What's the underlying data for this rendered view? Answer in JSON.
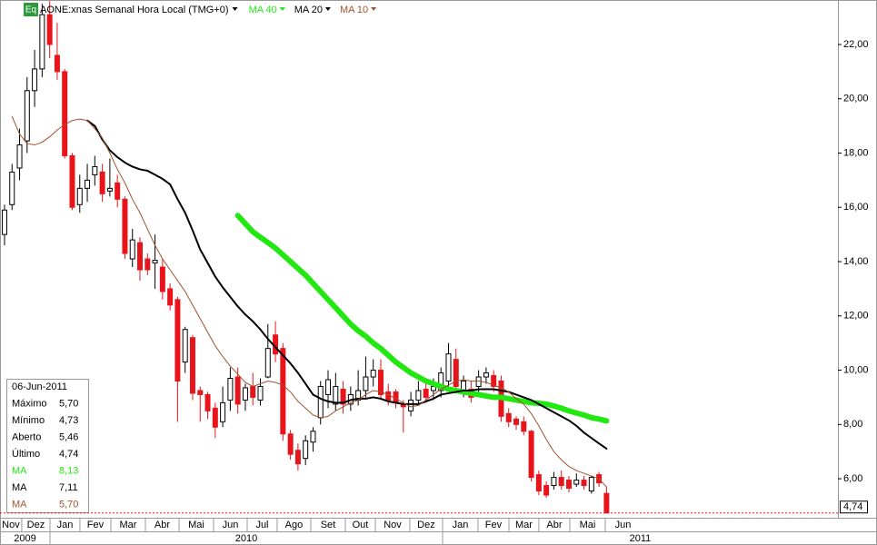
{
  "chart_data": {
    "type": "candlestick",
    "badge": "Eq",
    "title": "AONE:xnas Semanal Hora Local (TMG+0)",
    "xlim": [
      -0.6,
      110.75
    ],
    "ylim": [
      4.63,
      23.64
    ],
    "yticks": [
      {
        "value": 6,
        "label": "6,00"
      },
      {
        "value": 8,
        "label": "8,00"
      },
      {
        "value": 10,
        "label": "10,00"
      },
      {
        "value": 12,
        "label": "12,00"
      },
      {
        "value": 14,
        "label": "14,00"
      },
      {
        "value": 16,
        "label": "16,00"
      },
      {
        "value": 18,
        "label": "18,00"
      },
      {
        "value": 20,
        "label": "20,00"
      },
      {
        "value": 22,
        "label": "22,00"
      }
    ],
    "xticks": [
      {
        "value": -0.6,
        "label": "Nov"
      },
      {
        "value": 2.29,
        "label": "Dez"
      },
      {
        "value": 6.04,
        "label": "Jan"
      },
      {
        "value": 10.02,
        "label": "Fev"
      },
      {
        "value": 14.13,
        "label": "Mar"
      },
      {
        "value": 18.72,
        "label": "Abr"
      },
      {
        "value": 23.19,
        "label": "Mai"
      },
      {
        "value": 27.78,
        "label": "Jun"
      },
      {
        "value": 32.25,
        "label": "Jul"
      },
      {
        "value": 36.23,
        "label": "Ago"
      },
      {
        "value": 40.7,
        "label": "Set"
      },
      {
        "value": 45.29,
        "label": "Out"
      },
      {
        "value": 49.28,
        "label": "Nov"
      },
      {
        "value": 53.86,
        "label": "Dez"
      },
      {
        "value": 58.21,
        "label": "Jan"
      },
      {
        "value": 62.92,
        "label": "Fev"
      },
      {
        "value": 67.03,
        "label": "Mar"
      },
      {
        "value": 71.01,
        "label": "Abr"
      },
      {
        "value": 75.12,
        "label": "Mai"
      },
      {
        "value": 79.83,
        "label": "Jun"
      }
    ],
    "year_ticks": [
      {
        "value": -0.6,
        "label": "2009"
      },
      {
        "value": 6.04,
        "label": "2010"
      },
      {
        "value": 58.21,
        "label": "2011"
      }
    ],
    "candles": {
      "up_color": "#ffffff",
      "down_color": "#e8141c",
      "open": [
        15.0,
        16.1,
        17.45,
        18.45,
        20.3,
        21.1,
        23.1,
        21.6,
        21.0,
        17.9,
        16.1,
        16.7,
        17.2,
        17.3,
        16.6,
        16.9,
        16.3,
        14.1,
        14.7,
        14.1,
        13.95,
        13.8,
        13.0,
        12.6,
        10.3,
        11.2,
        9.25,
        9.1,
        8.6,
        8.1,
        8.9,
        9.75,
        8.9,
        9.4,
        8.9,
        9.75,
        11.3,
        10.8,
        7.65,
        7.05,
        6.75,
        7.35,
        8.25,
        9.1,
        8.75,
        9.3,
        8.75,
        8.9,
        9.25,
        9.75,
        10.0,
        9.2,
        9.2,
        8.75,
        8.5,
        8.9,
        9.3,
        9.25,
        9.25,
        9.6,
        10.4,
        9.25,
        9.3,
        9.4,
        9.75,
        9.8,
        9.6,
        8.4,
        8.2,
        8.1,
        7.75,
        6.15,
        5.75,
        5.75,
        6.05,
        5.95,
        5.8,
        5.95,
        5.55,
        6.15,
        5.46
      ],
      "high": [
        16.1,
        17.6,
        18.9,
        20.8,
        21.8,
        23.5,
        23.6,
        22.8,
        21.1,
        18.0,
        17.2,
        17.6,
        17.9,
        17.6,
        17.8,
        17.2,
        16.4,
        15.2,
        14.9,
        14.3,
        15.0,
        14.1,
        13.2,
        12.7,
        11.6,
        11.3,
        9.4,
        9.2,
        8.8,
        9.4,
        10.1,
        10.1,
        9.5,
        9.9,
        9.7,
        11.7,
        11.8,
        11.0,
        7.8,
        7.3,
        7.6,
        7.9,
        9.6,
        10.0,
        9.9,
        9.6,
        9.4,
        10.0,
        10.5,
        10.4,
        10.4,
        9.5,
        9.3,
        8.9,
        9.2,
        9.6,
        9.5,
        9.7,
        10.1,
        11.0,
        10.8,
        9.8,
        9.6,
        10.0,
        10.1,
        10.0,
        9.8,
        8.6,
        8.3,
        8.3,
        7.8,
        6.3,
        5.9,
        6.25,
        6.3,
        6.1,
        6.2,
        6.1,
        6.1,
        6.25,
        5.7
      ],
      "low": [
        14.6,
        15.9,
        17.0,
        18.0,
        19.7,
        20.8,
        21.5,
        20.7,
        17.8,
        15.9,
        15.8,
        16.2,
        16.8,
        16.2,
        16.4,
        16.0,
        14.1,
        13.8,
        13.3,
        13.5,
        13.0,
        12.6,
        12.2,
        8.1,
        9.9,
        8.9,
        8.1,
        8.2,
        7.5,
        7.9,
        8.5,
        8.4,
        8.5,
        8.7,
        8.7,
        9.7,
        10.3,
        7.4,
        6.7,
        6.3,
        6.5,
        7.0,
        8.0,
        8.6,
        8.5,
        8.4,
        8.5,
        8.7,
        9.0,
        9.4,
        8.9,
        8.7,
        8.6,
        7.7,
        8.3,
        8.7,
        8.8,
        8.9,
        9.0,
        9.4,
        9.2,
        9.0,
        8.8,
        9.1,
        9.5,
        9.2,
        8.1,
        7.9,
        7.8,
        7.6,
        5.9,
        5.4,
        5.3,
        5.6,
        5.6,
        5.5,
        5.7,
        5.6,
        5.45,
        5.7,
        4.73
      ],
      "close": [
        15.9,
        17.3,
        18.3,
        20.3,
        21.1,
        23.1,
        22.0,
        21.0,
        17.9,
        16.0,
        16.7,
        17.0,
        17.5,
        16.5,
        16.7,
        16.3,
        14.3,
        14.8,
        13.7,
        13.7,
        14.05,
        12.9,
        12.4,
        9.6,
        11.5,
        9.15,
        9.1,
        8.5,
        7.9,
        8.8,
        9.7,
        8.75,
        9.35,
        9.0,
        9.4,
        10.8,
        10.6,
        7.65,
        6.9,
        6.55,
        7.4,
        7.75,
        9.4,
        9.65,
        9.4,
        8.75,
        9.1,
        9.25,
        9.75,
        10.0,
        9.1,
        8.9,
        8.8,
        8.65,
        8.9,
        9.25,
        9.0,
        9.4,
        9.9,
        10.6,
        9.4,
        9.6,
        9.0,
        9.75,
        9.9,
        9.4,
        8.3,
        8.1,
        8.0,
        7.75,
        6.05,
        5.55,
        5.4,
        6.05,
        5.75,
        5.65,
        5.95,
        5.75,
        6.05,
        5.85,
        4.74
      ]
    },
    "series": [
      {
        "name": "MA 40",
        "color": "#22e812",
        "width": 6,
        "values": [
          null,
          null,
          null,
          null,
          null,
          null,
          null,
          null,
          null,
          null,
          null,
          null,
          null,
          null,
          null,
          null,
          null,
          null,
          null,
          null,
          null,
          null,
          null,
          null,
          null,
          null,
          null,
          null,
          null,
          null,
          null,
          15.7,
          15.4,
          15.1,
          14.9,
          14.7,
          14.5,
          14.25,
          14.0,
          13.75,
          13.5,
          13.2,
          12.9,
          12.6,
          12.3,
          12.0,
          11.7,
          11.45,
          11.25,
          11.0,
          10.8,
          10.55,
          10.3,
          10.1,
          9.9,
          9.75,
          9.6,
          9.5,
          9.4,
          9.3,
          9.25,
          9.2,
          9.15,
          9.1,
          9.05,
          9.0,
          9.0,
          8.95,
          8.9,
          8.85,
          8.8,
          8.78,
          8.75,
          8.68,
          8.6,
          8.5,
          8.42,
          8.35,
          8.25,
          8.2,
          8.13
        ]
      },
      {
        "name": "MA 20",
        "color": "#000000",
        "width": 2,
        "values": [
          null,
          null,
          null,
          null,
          null,
          null,
          null,
          null,
          null,
          null,
          null,
          19.2,
          19.0,
          18.5,
          18.1,
          17.85,
          17.65,
          17.5,
          17.4,
          17.35,
          17.2,
          17.05,
          16.85,
          16.3,
          15.8,
          15.15,
          14.45,
          13.95,
          13.45,
          13.05,
          12.7,
          12.35,
          12.05,
          11.8,
          11.5,
          11.15,
          10.85,
          10.55,
          10.25,
          9.9,
          9.5,
          9.1,
          8.95,
          8.85,
          8.8,
          8.8,
          8.9,
          8.95,
          8.95,
          9.0,
          8.95,
          8.85,
          8.8,
          8.75,
          8.75,
          8.75,
          8.85,
          8.95,
          9.1,
          9.15,
          9.2,
          9.25,
          9.25,
          9.3,
          9.3,
          9.3,
          9.25,
          9.2,
          9.1,
          9.0,
          8.9,
          8.75,
          8.6,
          8.45,
          8.3,
          8.15,
          7.95,
          7.7,
          7.5,
          7.3,
          7.11
        ]
      },
      {
        "name": "MA 10",
        "color": "#a0522d",
        "width": 1,
        "values": [
          null,
          19.35,
          18.7,
          18.35,
          18.3,
          18.4,
          18.6,
          18.85,
          19.05,
          19.2,
          19.25,
          19.2,
          18.9,
          18.55,
          18.0,
          17.4,
          16.9,
          16.3,
          15.8,
          15.2,
          14.6,
          14.1,
          13.7,
          13.3,
          12.9,
          12.4,
          11.9,
          11.4,
          10.9,
          10.5,
          10.15,
          9.85,
          9.55,
          9.4,
          9.5,
          9.6,
          9.55,
          9.45,
          9.2,
          8.85,
          8.6,
          8.35,
          8.25,
          8.3,
          8.5,
          8.65,
          8.8,
          8.9,
          9.1,
          9.25,
          9.2,
          9.1,
          8.95,
          8.8,
          8.65,
          8.7,
          8.9,
          9.1,
          9.3,
          9.45,
          9.6,
          9.65,
          9.6,
          9.6,
          9.55,
          9.45,
          9.35,
          9.2,
          8.95,
          8.75,
          8.4,
          7.95,
          7.45,
          7.0,
          6.7,
          6.45,
          6.3,
          6.2,
          6.1,
          6.0,
          5.7
        ]
      }
    ],
    "last_price": {
      "value": 4.74,
      "label": "4,74"
    },
    "info_box": {
      "date": "06-Jun-2011",
      "rows": [
        {
          "name": "Máximo",
          "value": "5,70",
          "color": "#000000"
        },
        {
          "name": "Mínimo",
          "value": "4,73",
          "color": "#000000"
        },
        {
          "name": "Aberto",
          "value": "5,46",
          "color": "#000000"
        },
        {
          "name": "Último",
          "value": "4,74",
          "color": "#000000"
        },
        {
          "name": "MA",
          "value": "8,13",
          "color": "#22e812"
        },
        {
          "name": "MA",
          "value": "7,11",
          "color": "#000000"
        },
        {
          "name": "MA",
          "value": "5,70",
          "color": "#a0522d"
        }
      ]
    }
  }
}
